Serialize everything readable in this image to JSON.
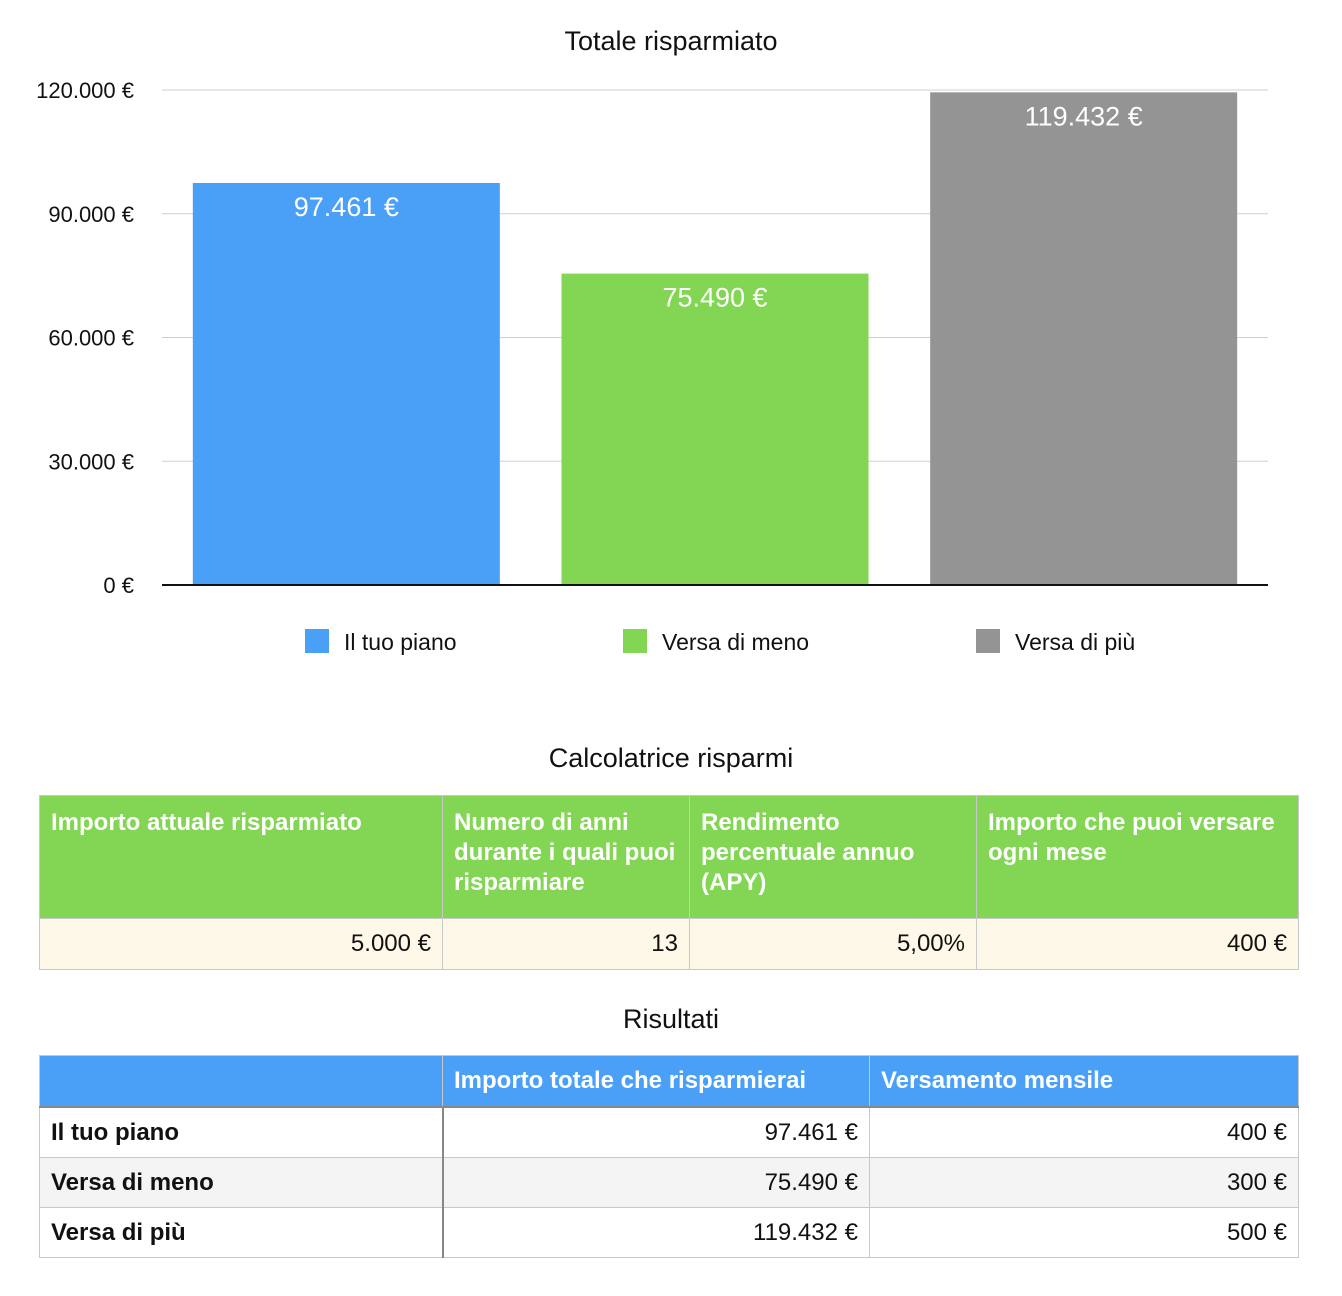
{
  "chart_data": {
    "type": "bar",
    "title": "Totale risparmiato",
    "categories": [
      "Il tuo piano",
      "Versa di meno",
      "Versa di più"
    ],
    "values": [
      97461,
      75490,
      119432
    ],
    "data_labels": [
      "97.461 €",
      "75.490 €",
      "119.432 €"
    ],
    "colors": [
      "#4aa0f7",
      "#82d654",
      "#949494"
    ],
    "ylim": [
      0,
      120000
    ],
    "yticks": [
      0,
      30000,
      60000,
      90000,
      120000
    ],
    "ytick_labels": [
      "0 €",
      "30.000 €",
      "60.000 €",
      "90.000 €",
      "120.000 €"
    ],
    "legend": [
      {
        "name": "Il tuo piano",
        "color": "#4aa0f7"
      },
      {
        "name": "Versa di meno",
        "color": "#82d654"
      },
      {
        "name": "Versa di più",
        "color": "#949494"
      }
    ],
    "legend_position": "bottom",
    "grid": true
  },
  "calculator": {
    "title": "Calcolatrice risparmi",
    "headers": [
      "Importo attuale risparmiato",
      "Numero di anni durante i quali puoi risparmiare",
      "Rendimento percentuale annuo (APY)",
      "Importo che puoi versare ogni mese"
    ],
    "values": [
      "5.000 €",
      "13",
      "5,00%",
      "400 €"
    ],
    "header_color": "#82d654"
  },
  "results": {
    "title": "Risultati",
    "headers": [
      "",
      "Importo totale che risparmierai",
      "Versamento mensile"
    ],
    "rows": [
      [
        "Il tuo piano",
        "97.461 €",
        "400 €"
      ],
      [
        "Versa di meno",
        "75.490 €",
        "300 €"
      ],
      [
        "Versa di più",
        "119.432 €",
        "500 €"
      ]
    ],
    "header_color": "#4aa0f7"
  }
}
